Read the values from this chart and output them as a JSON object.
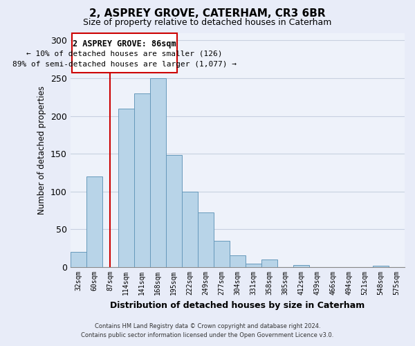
{
  "title": "2, ASPREY GROVE, CATERHAM, CR3 6BR",
  "subtitle": "Size of property relative to detached houses in Caterham",
  "xlabel": "Distribution of detached houses by size in Caterham",
  "ylabel": "Number of detached properties",
  "bar_labels": [
    "32sqm",
    "60sqm",
    "87sqm",
    "114sqm",
    "141sqm",
    "168sqm",
    "195sqm",
    "222sqm",
    "249sqm",
    "277sqm",
    "304sqm",
    "331sqm",
    "358sqm",
    "385sqm",
    "412sqm",
    "439sqm",
    "466sqm",
    "494sqm",
    "521sqm",
    "548sqm",
    "575sqm"
  ],
  "bar_values": [
    20,
    120,
    0,
    210,
    230,
    250,
    148,
    100,
    72,
    35,
    16,
    5,
    10,
    0,
    3,
    0,
    0,
    0,
    0,
    2,
    0
  ],
  "bar_color": "#b8d4e8",
  "bar_edge_color": "#6699bb",
  "vline_x": 2,
  "vline_color": "#cc0000",
  "box_edge_color": "#cc0000",
  "ylim": [
    0,
    310
  ],
  "yticks": [
    0,
    50,
    100,
    150,
    200,
    250,
    300
  ],
  "footer_line1": "Contains HM Land Registry data © Crown copyright and database right 2024.",
  "footer_line2": "Contains public sector information licensed under the Open Government Licence v3.0.",
  "background_color": "#e8ecf8",
  "plot_bg_color": "#eef2fa",
  "grid_color": "#c8d0e0",
  "title_fontsize": 11,
  "subtitle_fontsize": 9
}
